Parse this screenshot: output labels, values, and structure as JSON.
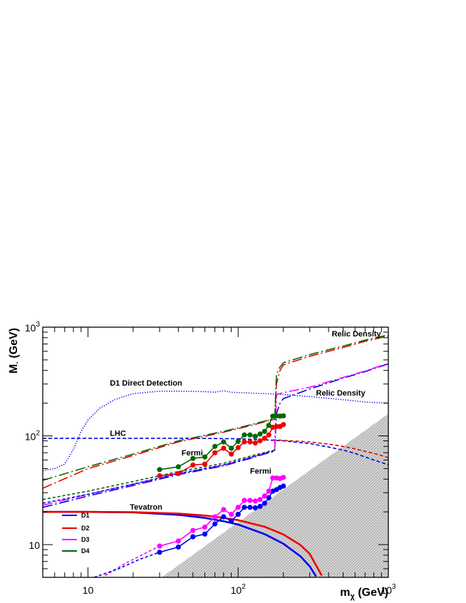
{
  "chart_data": {
    "type": "line",
    "title": "",
    "xlabel": "m",
    "xlabel_sub": "χ",
    "xlabel_unit": " (GeV)",
    "ylabel": "M",
    "ylabel_sub": "·",
    "ylabel_unit": " (GeV)",
    "xscale": "log",
    "yscale": "log",
    "xlim": [
      5,
      1000
    ],
    "ylim": [
      5,
      1000
    ],
    "grid": false,
    "legend_position": "bottom-left",
    "x_tick_labels": [
      {
        "value": 10,
        "base": "10",
        "exp": ""
      },
      {
        "value": 100,
        "base": "10",
        "exp": "2"
      },
      {
        "value": 1000,
        "base": "10",
        "exp": "3"
      }
    ],
    "y_tick_labels": [
      {
        "value": 10,
        "base": "10",
        "exp": ""
      },
      {
        "value": 100,
        "base": "10",
        "exp": "2"
      },
      {
        "value": 1000,
        "base": "10",
        "exp": "3"
      }
    ],
    "colors": {
      "D1": "#0000ee",
      "D2": "#ee0000",
      "D3": "#ff00ff",
      "D4": "#006600",
      "excluded": "#c8c8c8"
    },
    "legend": [
      {
        "label": "D1",
        "color": "#0000ee"
      },
      {
        "label": "D2",
        "color": "#ee0000"
      },
      {
        "label": "D3",
        "color": "#ff00ff"
      },
      {
        "label": "D4",
        "color": "#006600"
      }
    ],
    "annotations": [
      {
        "text": "Relic Density",
        "x": 420,
        "y": 820
      },
      {
        "text": "D1 Direct Detection",
        "x": 14,
        "y": 290
      },
      {
        "text": "Relic Density",
        "x": 330,
        "y": 235
      },
      {
        "text": "LHC",
        "x": 14,
        "y": 100
      },
      {
        "text": "Fermi",
        "x": 42,
        "y": 66
      },
      {
        "text": "Fermi",
        "x": 120,
        "y": 45
      },
      {
        "text": "Tevatron",
        "x": 19,
        "y": 21
      }
    ],
    "excluded_region": {
      "description_boundary": "M = m",
      "points": [
        [
          31,
          5
        ],
        [
          1000,
          5
        ],
        [
          1000,
          160
        ]
      ]
    },
    "series": [
      {
        "name": "D1",
        "role": "Tevatron",
        "style": "solid",
        "color": "#0000ee",
        "x": [
          5,
          10,
          20,
          40,
          60,
          80,
          100,
          150,
          200,
          260,
          300,
          330
        ],
        "y": [
          20,
          20,
          19.8,
          18.8,
          17.6,
          16.4,
          15.3,
          12.5,
          10.2,
          7.8,
          6.3,
          5.1
        ]
      },
      {
        "name": "D2",
        "role": "Tevatron",
        "style": "solid",
        "color": "#ee0000",
        "x": [
          5,
          10,
          20,
          40,
          60,
          80,
          100,
          150,
          200,
          260,
          300,
          360
        ],
        "y": [
          20,
          20,
          19.9,
          19.3,
          18.5,
          17.6,
          16.8,
          14.6,
          12.4,
          9.9,
          8.2,
          5.2
        ]
      },
      {
        "name": "D1",
        "role": "Fermi",
        "style": "dots",
        "color": "#0000ee",
        "x": [
          30,
          40,
          50,
          60,
          70,
          80,
          90,
          100,
          110,
          120,
          130,
          140,
          150,
          160,
          170,
          180,
          190,
          200
        ],
        "y": [
          8.5,
          9.5,
          11.8,
          12.5,
          15.5,
          18.0,
          16.5,
          19.0,
          22.0,
          22.0,
          21.8,
          22.5,
          24.0,
          27.0,
          31.0,
          32.0,
          33.5,
          34.5
        ]
      },
      {
        "name": "D3",
        "role": "Fermi",
        "style": "dots",
        "color": "#ff00ff",
        "x": [
          30,
          40,
          50,
          60,
          70,
          80,
          90,
          100,
          110,
          120,
          130,
          140,
          150,
          160,
          170,
          180,
          190,
          200
        ],
        "y": [
          9.7,
          10.8,
          13.5,
          14.5,
          18.0,
          21.0,
          19.0,
          22.0,
          25.5,
          25.5,
          25.2,
          26.0,
          28.0,
          31.0,
          41.0,
          41.0,
          40.5,
          41.5
        ]
      },
      {
        "name": "D2",
        "role": "Fermi",
        "style": "dots",
        "color": "#ee0000",
        "x": [
          30,
          40,
          50,
          60,
          70,
          80,
          90,
          100,
          110,
          120,
          130,
          140,
          150,
          160,
          170,
          180,
          190,
          200
        ],
        "y": [
          43,
          45,
          54,
          55,
          70,
          77,
          68,
          78,
          88,
          88,
          86,
          90,
          95,
          102,
          120,
          122,
          122,
          127
        ]
      },
      {
        "name": "D4",
        "role": "Fermi",
        "style": "dots",
        "color": "#006600",
        "x": [
          30,
          40,
          50,
          60,
          70,
          80,
          90,
          100,
          110,
          120,
          130,
          140,
          150,
          160,
          170,
          180,
          190,
          200
        ],
        "y": [
          49,
          52,
          62,
          64,
          80,
          88,
          77,
          89,
          102,
          102,
          99,
          104,
          110,
          125,
          152,
          153,
          152,
          153
        ]
      },
      {
        "name": "D1",
        "role": "LHC",
        "style": "dashed",
        "color": "#0000ee",
        "x": [
          5,
          50,
          100,
          150,
          200,
          300,
          400,
          500,
          600,
          700,
          800,
          900,
          1000
        ],
        "y": [
          95,
          95,
          94,
          92,
          90,
          85,
          79,
          74,
          69,
          64,
          60,
          57,
          54
        ]
      },
      {
        "name": "D2",
        "role": "LHC",
        "style": "dashed",
        "color": "#ee0000",
        "x": [
          170,
          200,
          300,
          400,
          500,
          600,
          700,
          800,
          900,
          1000
        ],
        "y": [
          92,
          91,
          88,
          84,
          80,
          76,
          72,
          69,
          66,
          63
        ]
      },
      {
        "name": "D1",
        "role": "Direct Detection",
        "style": "dotted",
        "color": "#0000ee",
        "x": [
          5,
          6,
          7,
          8,
          9,
          10,
          12,
          15,
          20,
          30,
          40,
          60,
          70,
          80,
          90,
          100,
          150,
          200,
          300,
          500,
          700,
          1000
        ],
        "y": [
          48,
          50,
          55,
          75,
          110,
          140,
          180,
          215,
          245,
          258,
          258,
          255,
          252,
          260,
          252,
          250,
          245,
          240,
          230,
          215,
          205,
          200
        ]
      },
      {
        "name": "D1",
        "role": "Relic Density",
        "style": "longdash-dot",
        "color": "#0000ee",
        "x": [
          5,
          10,
          20,
          40,
          80,
          120,
          160,
          175,
          180,
          190,
          200,
          300,
          500,
          700,
          1000
        ],
        "y": [
          22,
          28,
          35,
          44,
          53,
          62,
          70,
          72,
          160,
          200,
          220,
          270,
          340,
          390,
          460
        ]
      },
      {
        "name": "D3",
        "role": "Relic Density",
        "style": "longdash-dot",
        "color": "#ff00ff",
        "x": [
          5,
          10,
          20,
          40,
          80,
          120,
          160,
          175,
          180,
          190,
          200,
          300,
          500,
          700,
          1000
        ],
        "y": [
          23,
          29,
          36,
          45,
          54,
          63,
          71,
          73,
          240,
          245,
          250,
          280,
          345,
          395,
          465
        ]
      },
      {
        "name": "D2",
        "role": "Relic Density",
        "style": "longdash-dot",
        "color": "#ee0000",
        "x": [
          5,
          10,
          20,
          40,
          80,
          120,
          160,
          175,
          180,
          190,
          200,
          300,
          500,
          700,
          1000
        ],
        "y": [
          33,
          50,
          66,
          88,
          108,
          124,
          138,
          142,
          300,
          400,
          450,
          540,
          650,
          740,
          830
        ]
      },
      {
        "name": "D4",
        "role": "Relic Density",
        "style": "longdash-dot",
        "color": "#006600",
        "x": [
          5,
          10,
          20,
          40,
          80,
          120,
          160,
          175,
          180,
          190,
          200,
          300,
          500,
          700,
          1000
        ],
        "y": [
          39,
          52,
          68,
          90,
          110,
          126,
          140,
          144,
          370,
          430,
          470,
          560,
          670,
          760,
          850
        ]
      },
      {
        "name": "D1",
        "role": "Relic Density low",
        "style": "dashed-fine",
        "color": "#0000ee",
        "x": [
          5,
          10,
          20,
          40,
          80,
          120,
          160,
          175
        ],
        "y": [
          24,
          29,
          36,
          45,
          54,
          63,
          71,
          73
        ]
      },
      {
        "name": "D4",
        "role": "Relic Density low",
        "style": "dashed-fine",
        "color": "#006600",
        "x": [
          5,
          10,
          20,
          40,
          80,
          120,
          160,
          175
        ],
        "y": [
          26,
          31,
          38,
          47,
          56,
          65,
          72,
          74
        ]
      },
      {
        "name": "D3",
        "role": "Fermi low",
        "style": "dashed-fine",
        "color": "#ff00ff",
        "x": [
          13,
          18,
          24,
          30
        ],
        "y": [
          5.2,
          6.8,
          8.3,
          9.7
        ]
      },
      {
        "name": "D1",
        "role": "Fermi low",
        "style": "dashed-fine",
        "color": "#0000ee",
        "x": [
          11,
          16,
          22,
          30
        ],
        "y": [
          5.0,
          6.0,
          7.3,
          8.5
        ]
      }
    ]
  }
}
